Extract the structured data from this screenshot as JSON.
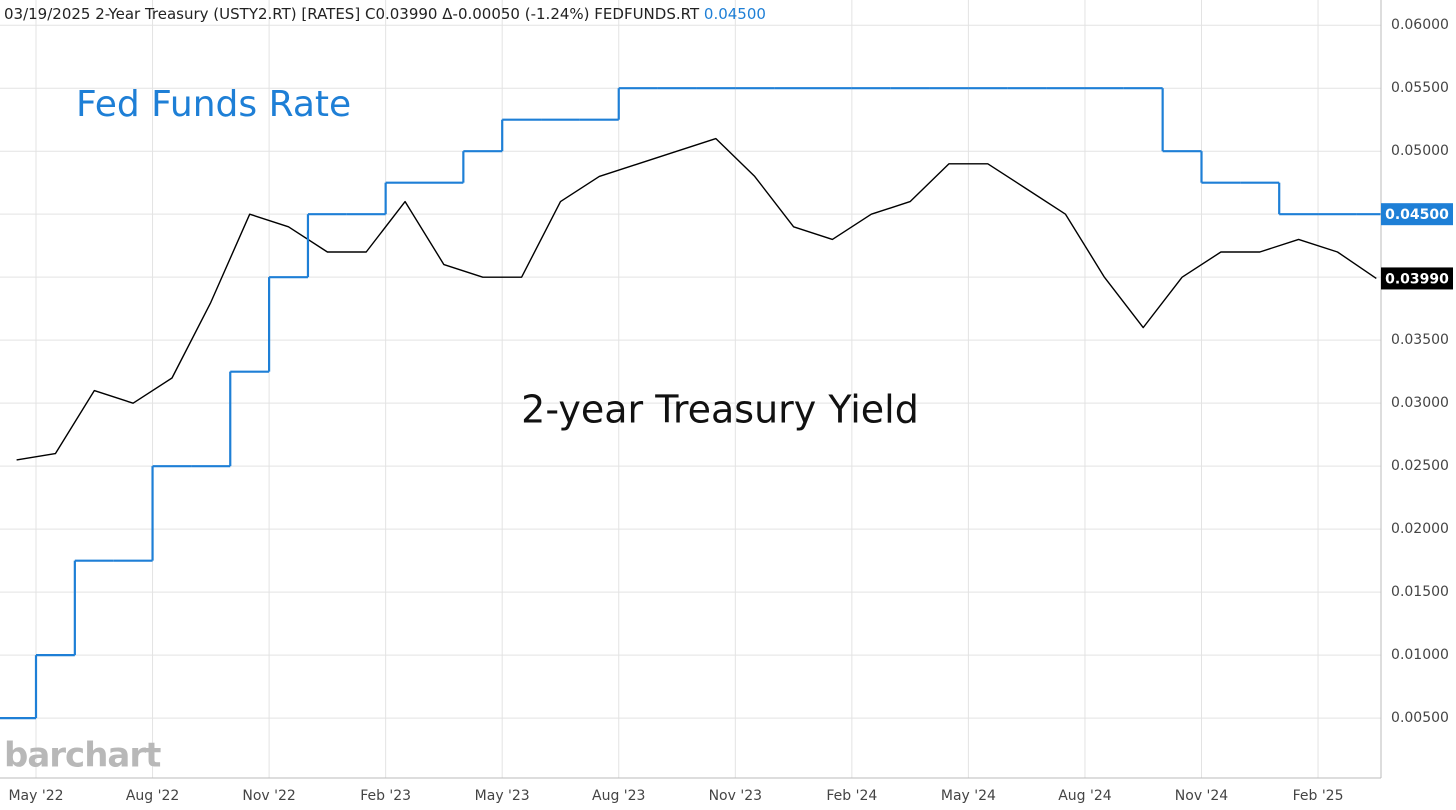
{
  "header": {
    "date": "03/19/2025",
    "symbol_text": "2-Year Treasury (USTY2.RT) [RATES]",
    "close": "C0.03990",
    "change": "Δ-0.00050 (-1.24%)",
    "symbol2": "FEDFUNDS.RT",
    "symbol2_value": "0.04500"
  },
  "logo": "barchart",
  "chart_data": {
    "type": "line",
    "x": [
      "2022-04",
      "2022-05",
      "2022-06",
      "2022-07",
      "2022-08",
      "2022-09",
      "2022-10",
      "2022-11",
      "2022-12",
      "2023-01",
      "2023-02",
      "2023-03",
      "2023-04",
      "2023-05",
      "2023-06",
      "2023-07",
      "2023-08",
      "2023-09",
      "2023-10",
      "2023-11",
      "2023-12",
      "2024-01",
      "2024-02",
      "2024-03",
      "2024-04",
      "2024-05",
      "2024-06",
      "2024-07",
      "2024-08",
      "2024-09",
      "2024-10",
      "2024-11",
      "2024-12",
      "2025-01",
      "2025-02",
      "2025-03"
    ],
    "series": [
      {
        "name": "2-year Treasury Yield",
        "color": "#000000",
        "style": "line",
        "values": [
          0.0255,
          0.026,
          0.031,
          0.03,
          0.032,
          0.038,
          0.045,
          0.044,
          0.042,
          0.042,
          0.046,
          0.041,
          0.04,
          0.04,
          0.046,
          0.048,
          0.049,
          0.05,
          0.051,
          0.048,
          0.044,
          0.043,
          0.045,
          0.046,
          0.049,
          0.049,
          0.047,
          0.045,
          0.04,
          0.036,
          0.04,
          0.042,
          0.042,
          0.043,
          0.042,
          0.0399
        ],
        "badge": {
          "value": 0.0399,
          "label": "0.03990"
        }
      },
      {
        "name": "Fed Funds Rate",
        "color": "#1e7fd6",
        "style": "step",
        "values": [
          0.005,
          0.01,
          0.0175,
          0.0175,
          0.025,
          0.025,
          0.0325,
          0.04,
          0.045,
          0.045,
          0.0475,
          0.0475,
          0.05,
          0.0525,
          0.0525,
          0.0525,
          0.055,
          0.055,
          0.055,
          0.055,
          0.055,
          0.055,
          0.055,
          0.055,
          0.055,
          0.055,
          0.055,
          0.055,
          0.055,
          0.055,
          0.05,
          0.0475,
          0.0475,
          0.045,
          0.045,
          0.045
        ],
        "badge": {
          "value": 0.045,
          "label": "0.04500"
        }
      }
    ],
    "ylim": [
      0.00025,
      0.062
    ],
    "yticks": [
      {
        "value": 0.005,
        "label": "0.00500"
      },
      {
        "value": 0.01,
        "label": "0.01000"
      },
      {
        "value": 0.015,
        "label": "0.01500"
      },
      {
        "value": 0.02,
        "label": "0.02000"
      },
      {
        "value": 0.025,
        "label": "0.02500"
      },
      {
        "value": 0.03,
        "label": "0.03000"
      },
      {
        "value": 0.035,
        "label": "0.03500"
      },
      {
        "value": 0.04,
        "label": "0.04000"
      },
      {
        "value": 0.045,
        "label": "0.04500"
      },
      {
        "value": 0.05,
        "label": "0.05000"
      },
      {
        "value": 0.055,
        "label": "0.05500"
      },
      {
        "value": 0.06,
        "label": "0.06000"
      }
    ],
    "xticks": [
      {
        "value": "2022-05",
        "label": "May '22"
      },
      {
        "value": "2022-08",
        "label": "Aug '22"
      },
      {
        "value": "2022-11",
        "label": "Nov '22"
      },
      {
        "value": "2023-02",
        "label": "Feb '23"
      },
      {
        "value": "2023-05",
        "label": "May '23"
      },
      {
        "value": "2023-08",
        "label": "Aug '23"
      },
      {
        "value": "2023-11",
        "label": "Nov '23"
      },
      {
        "value": "2024-02",
        "label": "Feb '24"
      },
      {
        "value": "2024-05",
        "label": "May '24"
      },
      {
        "value": "2024-08",
        "label": "Aug '24"
      },
      {
        "value": "2024-11",
        "label": "Nov '24"
      },
      {
        "value": "2025-02",
        "label": "Feb '25"
      }
    ],
    "grid": true
  }
}
